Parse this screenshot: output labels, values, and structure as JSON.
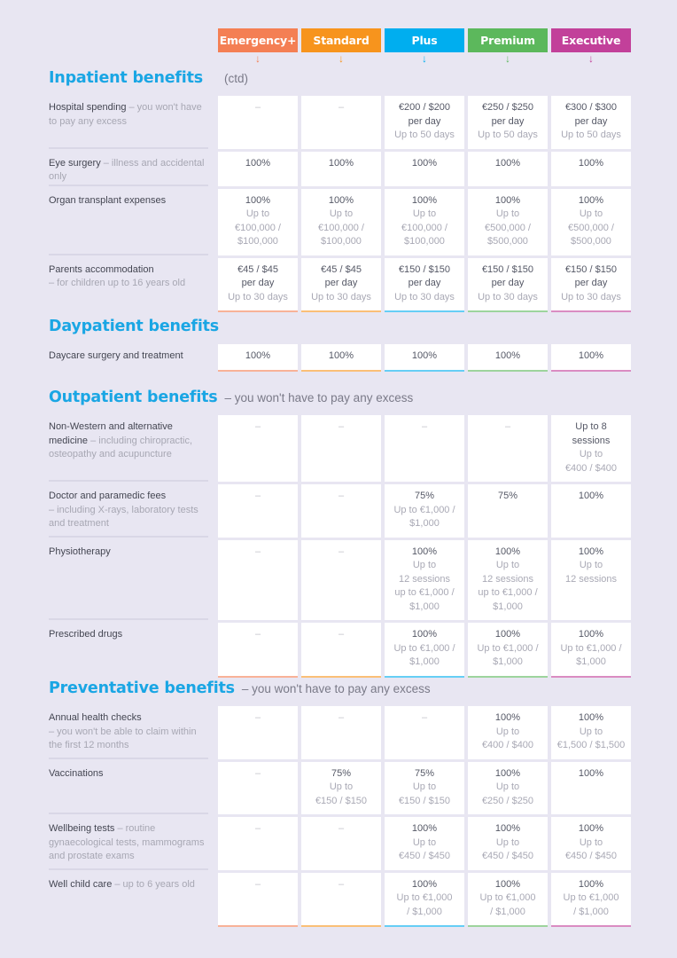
{
  "plans": [
    {
      "label": "Emergency+",
      "color": "#f47f54"
    },
    {
      "label": "Standard",
      "color": "#f7941d"
    },
    {
      "label": "Plus",
      "color": "#00aeef"
    },
    {
      "label": "Premium",
      "color": "#5cb85c"
    },
    {
      "label": "Executive",
      "color": "#c2409a"
    }
  ],
  "arrow_glyph": "↓",
  "sections": [
    {
      "id": "inpatient",
      "title": "Inpatient benefits",
      "subtitle": "(ctd)",
      "rows": [
        {
          "title": "Hospital spending",
          "desc": " – you won't have to pay any excess",
          "cells": [
            [
              "–",
              ""
            ],
            [
              "–",
              ""
            ],
            [
              "€200 / $200\nper day",
              "Up to 50 days"
            ],
            [
              "€250 / $250\nper day",
              "Up to 50 days"
            ],
            [
              "€300 / $300\nper day",
              "Up to 50 days"
            ]
          ]
        },
        {
          "title": "Eye surgery",
          "desc": " – illness and accidental only",
          "cells": [
            [
              "100%",
              ""
            ],
            [
              "100%",
              ""
            ],
            [
              "100%",
              ""
            ],
            [
              "100%",
              ""
            ],
            [
              "100%",
              ""
            ]
          ]
        },
        {
          "title": "Organ transplant expenses",
          "desc": "",
          "cells": [
            [
              "100%",
              "Up to\n€100,000 /\n$100,000"
            ],
            [
              "100%",
              "Up to\n€100,000 /\n$100,000"
            ],
            [
              "100%",
              "Up to\n€100,000 /\n$100,000"
            ],
            [
              "100%",
              "Up to\n€500,000 /\n$500,000"
            ],
            [
              "100%",
              "Up to\n€500,000 /\n$500,000"
            ]
          ]
        },
        {
          "title": "Parents accommodation",
          "desc": "\n– for children up to 16 years old",
          "cells": [
            [
              "€45 / $45\nper day",
              "Up to 30 days"
            ],
            [
              "€45 / $45\nper day",
              "Up to 30 days"
            ],
            [
              "€150 / $150\nper day",
              "Up to 30 days"
            ],
            [
              "€150 / $150\nper day",
              "Up to 30 days"
            ],
            [
              "€150 / $150\nper day",
              "Up to 30 days"
            ]
          ]
        }
      ]
    },
    {
      "id": "daypatient",
      "title": "Daypatient benefits",
      "subtitle": "",
      "rows": [
        {
          "title": "Daycare surgery and treatment",
          "desc": "",
          "cells": [
            [
              "100%",
              ""
            ],
            [
              "100%",
              ""
            ],
            [
              "100%",
              ""
            ],
            [
              "100%",
              ""
            ],
            [
              "100%",
              ""
            ]
          ]
        }
      ]
    },
    {
      "id": "outpatient",
      "title": "Outpatient benefits",
      "subtitle": "– you won't have to pay any excess",
      "rows": [
        {
          "title": "Non-Western and alternative medicine",
          "desc": " – including chiropractic, osteopathy and acupuncture",
          "cells": [
            [
              "–",
              ""
            ],
            [
              "–",
              ""
            ],
            [
              "–",
              ""
            ],
            [
              "–",
              ""
            ],
            [
              "Up to 8\nsessions",
              "Up to\n€400 / $400"
            ]
          ]
        },
        {
          "title": "Doctor and paramedic fees",
          "desc": "\n– including X-rays, laboratory tests and treatment",
          "cells": [
            [
              "–",
              ""
            ],
            [
              "–",
              ""
            ],
            [
              "75%",
              "Up to €1,000 /\n$1,000"
            ],
            [
              "75%",
              ""
            ],
            [
              "100%",
              ""
            ]
          ]
        },
        {
          "title": "Physiotherapy",
          "desc": "",
          "cells": [
            [
              "–",
              ""
            ],
            [
              "–",
              ""
            ],
            [
              "100%",
              "Up to\n12 sessions\nup to €1,000 /\n$1,000"
            ],
            [
              "100%",
              "Up to\n12 sessions\nup to €1,000 /\n$1,000"
            ],
            [
              "100%",
              "Up to\n12 sessions"
            ]
          ]
        },
        {
          "title": "Prescribed drugs",
          "desc": "",
          "cells": [
            [
              "–",
              ""
            ],
            [
              "–",
              ""
            ],
            [
              "100%",
              "Up to €1,000 /\n$1,000"
            ],
            [
              "100%",
              "Up to €1,000 /\n$1,000"
            ],
            [
              "100%",
              "Up to €1,000 /\n$1,000"
            ]
          ]
        }
      ]
    },
    {
      "id": "preventative",
      "title": "Preventative benefits",
      "subtitle": "– you won't have to pay any excess",
      "rows": [
        {
          "title": "Annual health checks",
          "desc": "\n– you won't be able to claim within the first 12 months",
          "cells": [
            [
              "–",
              ""
            ],
            [
              "–",
              ""
            ],
            [
              "–",
              ""
            ],
            [
              "100%",
              "Up to\n€400 / $400"
            ],
            [
              "100%",
              "Up to\n€1,500 / $1,500"
            ]
          ]
        },
        {
          "title": "Vaccinations",
          "desc": "",
          "cells": [
            [
              "–",
              ""
            ],
            [
              "75%",
              "Up to\n€150 / $150"
            ],
            [
              "75%",
              "Up to\n€150 / $150"
            ],
            [
              "100%",
              "Up to\n€250 / $250"
            ],
            [
              "100%",
              ""
            ]
          ]
        },
        {
          "title": "Wellbeing tests",
          "desc": " – routine gynaecological tests, mammograms and prostate exams",
          "cells": [
            [
              "–",
              ""
            ],
            [
              "–",
              ""
            ],
            [
              "100%",
              "Up to\n€450 / $450"
            ],
            [
              "100%",
              "Up to\n€450 / $450"
            ],
            [
              "100%",
              "Up to\n€450 / $450"
            ]
          ]
        },
        {
          "title": "Well child care",
          "desc": " – up to 6 years old",
          "cells": [
            [
              "–",
              ""
            ],
            [
              "–",
              ""
            ],
            [
              "100%",
              "Up to €1,000\n/ $1,000"
            ],
            [
              "100%",
              "Up to €1,000\n/ $1,000"
            ],
            [
              "100%",
              "Up to €1,000\n/ $1,000"
            ]
          ]
        }
      ]
    }
  ]
}
